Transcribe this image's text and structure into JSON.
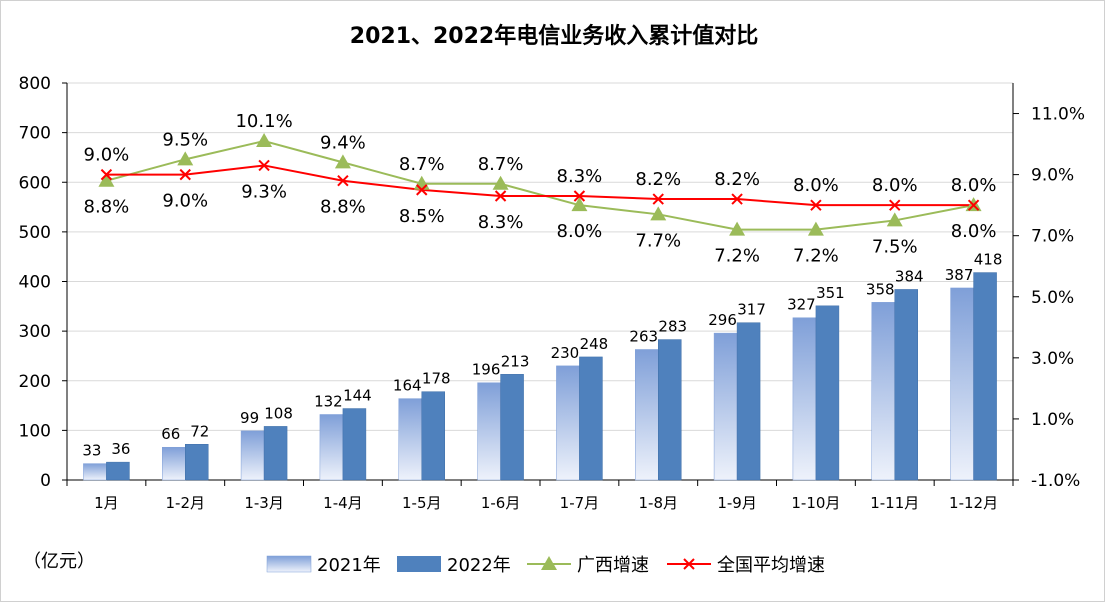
{
  "chart_data": {
    "type": "bar",
    "title": "2021、2022年电信业务收入累计值对比",
    "unit_label": "（亿元）",
    "categories": [
      "1月",
      "1-2月",
      "1-3月",
      "1-4月",
      "1-5月",
      "1-6月",
      "1-7月",
      "1-8月",
      "1-9月",
      "1-10月",
      "1-11月",
      "1-12月"
    ],
    "series": [
      {
        "name": "2021年",
        "type": "bar",
        "axis": "left",
        "color": "#a9bde4",
        "values": [
          33,
          66,
          99,
          132,
          164,
          196,
          230,
          263,
          296,
          327,
          358,
          387
        ]
      },
      {
        "name": "2022年",
        "type": "bar",
        "axis": "left",
        "color": "#4f81bd",
        "values": [
          36,
          72,
          108,
          144,
          178,
          213,
          248,
          283,
          317,
          351,
          384,
          418
        ]
      },
      {
        "name": "广西增速",
        "type": "line",
        "axis": "right",
        "color": "#9bbb59",
        "marker": "triangle",
        "values": [
          8.8,
          9.5,
          10.1,
          9.4,
          8.7,
          8.7,
          8.0,
          7.7,
          7.2,
          7.2,
          7.5,
          8.0
        ],
        "labels": [
          "8.8%",
          "9.5%",
          "10.1%",
          "9.4%",
          "8.7%",
          "8.7%",
          "8.0%",
          "7.7%",
          "7.2%",
          "7.2%",
          "7.5%",
          "8.0%"
        ]
      },
      {
        "name": "全国平均增速",
        "type": "line",
        "axis": "right",
        "color": "#ff0000",
        "marker": "x",
        "values": [
          9.0,
          9.0,
          9.3,
          8.8,
          8.5,
          8.3,
          8.3,
          8.2,
          8.2,
          8.0,
          8.0,
          8.0
        ],
        "labels": [
          "9.0%",
          "9.0%",
          "9.3%",
          "8.8%",
          "8.5%",
          "8.3%",
          "8.3%",
          "8.2%",
          "8.2%",
          "8.0%",
          "8.0%",
          "8.0%"
        ]
      }
    ],
    "y_left": {
      "ylim": [
        0,
        800
      ],
      "ticks": [
        0,
        100,
        200,
        300,
        400,
        500,
        600,
        700,
        800
      ],
      "tick_labels": [
        "0",
        "100",
        "200",
        "300",
        "400",
        "500",
        "600",
        "700",
        "800"
      ]
    },
    "y_right": {
      "ylim": [
        -1.0,
        12.0
      ],
      "ticks": [
        -1.0,
        1.0,
        3.0,
        5.0,
        7.0,
        9.0,
        11.0
      ],
      "tick_labels": [
        "-1.0%",
        "1.0%",
        "3.0%",
        "5.0%",
        "7.0%",
        "9.0%",
        "11.0%"
      ]
    },
    "grid": true,
    "legend_position": "bottom"
  }
}
